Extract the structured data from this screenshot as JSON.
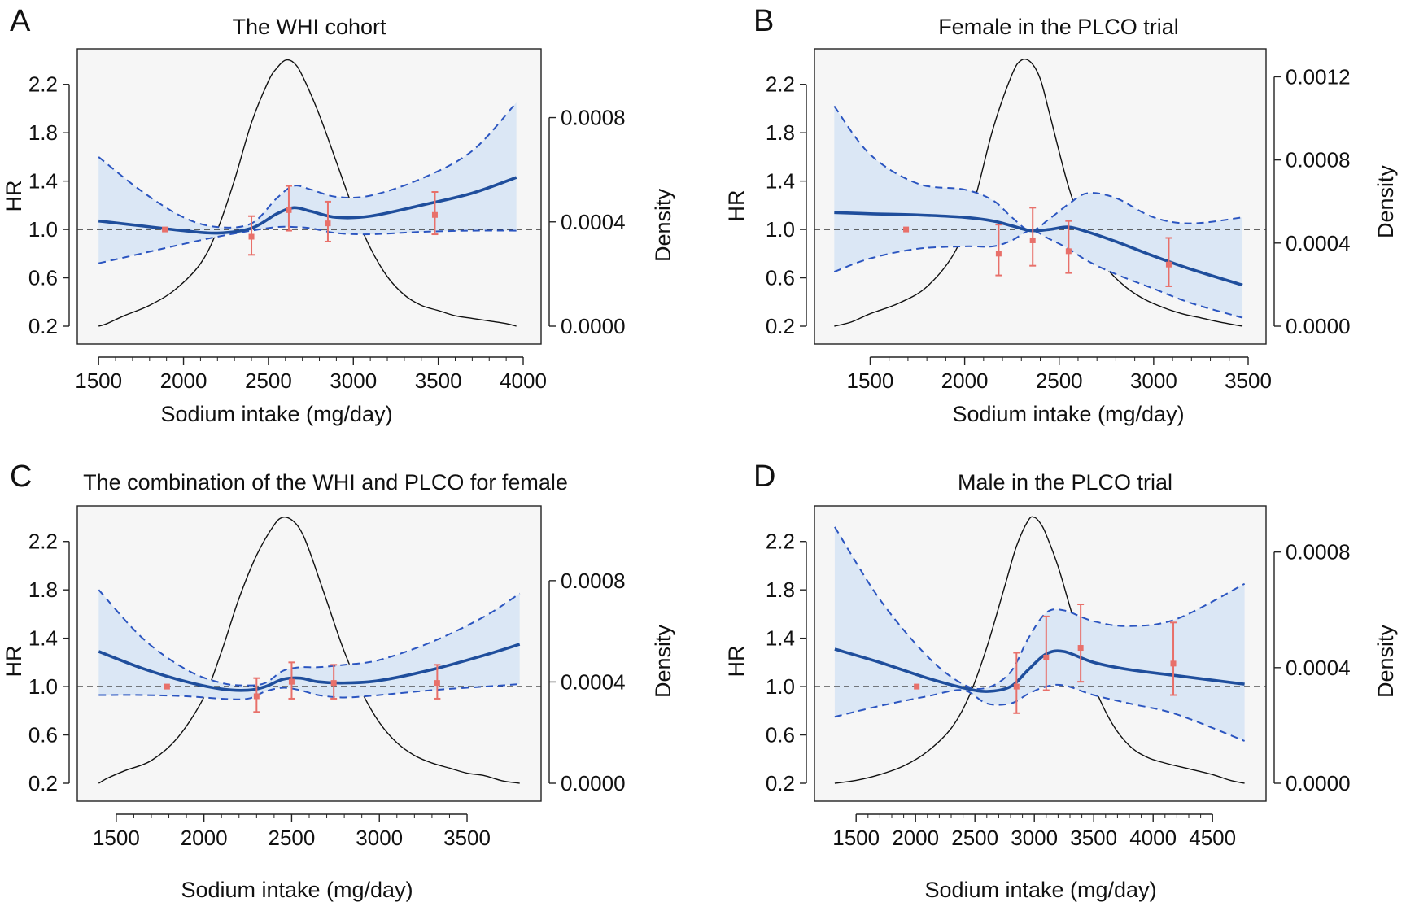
{
  "figure": {
    "left_axis_label": "HR",
    "right_axis_label": "Density",
    "x_axis_label": "Sodium intake (mg/day)"
  },
  "colors": {
    "plot_background": "#f6f6f6",
    "confidence_band": "#dbe7f5",
    "hr_curve": "#1f4e9c",
    "ci_dashed": "#2b55c0",
    "reference_line": "#333333",
    "density_curve": "#111111",
    "category_points": "#e8706a"
  },
  "chart_data": [
    {
      "type": "line",
      "panel": "A",
      "title": "The WHI cohort",
      "xlabel": "Sodium intake (mg/day)",
      "ylabel": "HR",
      "y2label": "Density",
      "xlim": [
        1480,
        4000
      ],
      "ylim": [
        0.2,
        2.4
      ],
      "y2lim": [
        0.0,
        0.00102
      ],
      "x_ticks": [
        1500,
        2000,
        2500,
        3000,
        3500,
        4000
      ],
      "y_ticks": [
        0.2,
        0.6,
        1.0,
        1.4,
        1.8,
        2.2
      ],
      "y2_ticks": [
        0.0,
        0.0004,
        0.0008
      ],
      "y2_tick_labels": [
        "0.0000",
        "0.0004",
        "0.0008"
      ],
      "reference_hr": 1.0,
      "hr_curve": {
        "x": [
          1500,
          1750,
          2000,
          2200,
          2400,
          2550,
          2650,
          2750,
          2900,
          3100,
          3400,
          3700,
          3960
        ],
        "y": [
          1.07,
          1.03,
          0.99,
          0.97,
          1.01,
          1.13,
          1.18,
          1.15,
          1.1,
          1.11,
          1.2,
          1.3,
          1.43
        ]
      },
      "ci_upper": {
        "x": [
          1500,
          1750,
          2000,
          2200,
          2400,
          2550,
          2650,
          2750,
          2900,
          3100,
          3400,
          3700,
          3960
        ],
        "y": [
          1.6,
          1.32,
          1.1,
          1.02,
          1.05,
          1.26,
          1.36,
          1.33,
          1.27,
          1.28,
          1.42,
          1.65,
          2.05
        ]
      },
      "ci_lower": {
        "x": [
          1500,
          1750,
          2000,
          2200,
          2400,
          2550,
          2650,
          2750,
          2900,
          3100,
          3400,
          3700,
          3960
        ],
        "y": [
          0.72,
          0.8,
          0.88,
          0.94,
          0.99,
          1.02,
          1.02,
          1.01,
          0.97,
          0.96,
          0.98,
          0.99,
          0.99
        ]
      },
      "density": {
        "x": [
          1500,
          1550,
          1650,
          1800,
          1950,
          2100,
          2200,
          2300,
          2400,
          2500,
          2550,
          2600,
          2650,
          2700,
          2800,
          2900,
          3000,
          3100,
          3200,
          3300,
          3400,
          3500,
          3600,
          3700,
          3800,
          3900,
          3960
        ],
        "y": [
          0.0,
          1e-05,
          4e-05,
          8e-05,
          0.00014,
          0.00024,
          0.00037,
          0.00056,
          0.00078,
          0.00094,
          0.00099,
          0.00102,
          0.00101,
          0.00096,
          0.00081,
          0.00063,
          0.00045,
          0.0003,
          0.00019,
          0.00012,
          8e-05,
          6e-05,
          4e-05,
          3e-05,
          2e-05,
          1e-05,
          0.0
        ]
      },
      "points": [
        {
          "x": 1890,
          "hr": 1.0,
          "lower": 1.0,
          "upper": 1.0
        },
        {
          "x": 2400,
          "hr": 0.94,
          "lower": 0.79,
          "upper": 1.11
        },
        {
          "x": 2620,
          "hr": 1.16,
          "lower": 0.99,
          "upper": 1.36
        },
        {
          "x": 2850,
          "hr": 1.05,
          "lower": 0.9,
          "upper": 1.23
        },
        {
          "x": 3480,
          "hr": 1.12,
          "lower": 0.96,
          "upper": 1.31
        }
      ]
    },
    {
      "type": "line",
      "panel": "B",
      "title": "Female in the PLCO trial",
      "xlabel": "Sodium intake (mg/day)",
      "ylabel": "HR",
      "y2label": "Density",
      "xlim": [
        1300,
        3500
      ],
      "ylim": [
        0.2,
        2.4
      ],
      "y2lim": [
        0.0,
        0.00128
      ],
      "x_ticks": [
        1500,
        2000,
        2500,
        3000,
        3500
      ],
      "y_ticks": [
        0.2,
        0.6,
        1.0,
        1.4,
        1.8,
        2.2
      ],
      "y2_ticks": [
        0.0,
        0.0004,
        0.0008,
        0.0012
      ],
      "y2_tick_labels": [
        "0.0000",
        "0.0004",
        "0.0008",
        "0.0012"
      ],
      "reference_hr": 1.0,
      "hr_curve": {
        "x": [
          1310,
          1500,
          1750,
          2000,
          2150,
          2250,
          2350,
          2450,
          2550,
          2650,
          2800,
          3000,
          3200,
          3470
        ],
        "y": [
          1.14,
          1.13,
          1.12,
          1.1,
          1.07,
          1.03,
          0.99,
          1.0,
          1.02,
          0.98,
          0.9,
          0.78,
          0.67,
          0.54
        ]
      },
      "ci_upper": {
        "x": [
          1310,
          1500,
          1750,
          2000,
          2150,
          2250,
          2350,
          2450,
          2550,
          2650,
          2800,
          3000,
          3200,
          3470
        ],
        "y": [
          2.02,
          1.62,
          1.38,
          1.33,
          1.24,
          1.1,
          0.99,
          1.09,
          1.21,
          1.3,
          1.26,
          1.1,
          1.05,
          1.1
        ]
      },
      "ci_lower": {
        "x": [
          1310,
          1500,
          1750,
          2000,
          2150,
          2250,
          2350,
          2450,
          2550,
          2650,
          2800,
          3000,
          3200,
          3470
        ],
        "y": [
          0.65,
          0.76,
          0.84,
          0.86,
          0.86,
          0.91,
          0.99,
          0.92,
          0.84,
          0.74,
          0.63,
          0.51,
          0.39,
          0.27
        ]
      },
      "density": {
        "x": [
          1310,
          1400,
          1500,
          1650,
          1800,
          1950,
          2050,
          2150,
          2250,
          2300,
          2350,
          2400,
          2450,
          2550,
          2650,
          2750,
          2850,
          2950,
          3050,
          3150,
          3250,
          3350,
          3470
        ],
        "y": [
          0.0,
          2e-05,
          6e-05,
          0.00011,
          0.00019,
          0.00036,
          0.0006,
          0.00095,
          0.00121,
          0.00128,
          0.00127,
          0.00119,
          0.00102,
          0.00067,
          0.00042,
          0.00028,
          0.00019,
          0.00013,
          9e-05,
          6e-05,
          4e-05,
          2e-05,
          0.0
        ]
      },
      "points": [
        {
          "x": 1690,
          "hr": 1.0,
          "lower": 1.0,
          "upper": 1.0
        },
        {
          "x": 2180,
          "hr": 0.8,
          "lower": 0.62,
          "upper": 1.04
        },
        {
          "x": 2360,
          "hr": 0.91,
          "lower": 0.7,
          "upper": 1.18
        },
        {
          "x": 2550,
          "hr": 0.82,
          "lower": 0.64,
          "upper": 1.07
        },
        {
          "x": 3080,
          "hr": 0.71,
          "lower": 0.53,
          "upper": 0.93
        }
      ]
    },
    {
      "type": "line",
      "panel": "C",
      "title": "The combination of the WHI and PLCO for female",
      "xlabel": "Sodium intake (mg/day)",
      "ylabel": "HR",
      "y2label": "Density",
      "xlim": [
        1380,
        3820
      ],
      "ylim": [
        0.2,
        2.4
      ],
      "y2lim": [
        0.0,
        0.00105
      ],
      "x_ticks": [
        1500,
        2000,
        2500,
        3000,
        3500
      ],
      "y_ticks": [
        0.2,
        0.6,
        1.0,
        1.4,
        1.8,
        2.2
      ],
      "y2_ticks": [
        0.0,
        0.0004,
        0.0008
      ],
      "y2_tick_labels": [
        "0.0000",
        "0.0004",
        "0.0008"
      ],
      "reference_hr": 1.0,
      "hr_curve": {
        "x": [
          1400,
          1650,
          1900,
          2100,
          2250,
          2350,
          2450,
          2550,
          2650,
          2800,
          3000,
          3300,
          3600,
          3800
        ],
        "y": [
          1.29,
          1.15,
          1.04,
          0.98,
          0.97,
          1.0,
          1.06,
          1.07,
          1.04,
          1.03,
          1.05,
          1.14,
          1.26,
          1.35
        ]
      },
      "ci_upper": {
        "x": [
          1400,
          1650,
          1900,
          2100,
          2250,
          2350,
          2450,
          2550,
          2650,
          2800,
          3000,
          3300,
          3600,
          3800
        ],
        "y": [
          1.8,
          1.4,
          1.14,
          1.03,
          1.01,
          1.03,
          1.13,
          1.16,
          1.16,
          1.18,
          1.22,
          1.37,
          1.58,
          1.77
        ]
      },
      "ci_lower": {
        "x": [
          1400,
          1650,
          1900,
          2100,
          2250,
          2350,
          2450,
          2550,
          2650,
          2800,
          3000,
          3300,
          3600,
          3800
        ],
        "y": [
          0.93,
          0.93,
          0.92,
          0.9,
          0.9,
          0.96,
          0.99,
          0.97,
          0.93,
          0.91,
          0.93,
          0.97,
          1.0,
          1.02
        ]
      },
      "density": {
        "x": [
          1400,
          1450,
          1550,
          1700,
          1850,
          2000,
          2100,
          2200,
          2300,
          2400,
          2450,
          2500,
          2550,
          2600,
          2700,
          2800,
          2900,
          3000,
          3100,
          3200,
          3300,
          3400,
          3500,
          3600,
          3700,
          3800
        ],
        "y": [
          0.0,
          2e-05,
          5e-05,
          9e-05,
          0.00018,
          0.00034,
          0.00052,
          0.00073,
          0.0009,
          0.00102,
          0.00105,
          0.00104,
          0.001,
          0.00092,
          0.00072,
          0.00052,
          0.00036,
          0.00024,
          0.00016,
          0.00011,
          8e-05,
          6e-05,
          4e-05,
          3e-05,
          1e-05,
          0.0
        ]
      },
      "points": [
        {
          "x": 1790,
          "hr": 1.0,
          "lower": 1.0,
          "upper": 1.0
        },
        {
          "x": 2300,
          "hr": 0.92,
          "lower": 0.79,
          "upper": 1.07
        },
        {
          "x": 2500,
          "hr": 1.04,
          "lower": 0.9,
          "upper": 1.2
        },
        {
          "x": 2740,
          "hr": 1.03,
          "lower": 0.9,
          "upper": 1.18
        },
        {
          "x": 3330,
          "hr": 1.03,
          "lower": 0.9,
          "upper": 1.18
        }
      ]
    },
    {
      "type": "line",
      "panel": "D",
      "title": "Male in the PLCO trial",
      "xlabel": "Sodium intake (mg/day)",
      "ylabel": "HR",
      "y2label": "Density",
      "xlim": [
        1300,
        4800
      ],
      "ylim": [
        0.2,
        2.4
      ],
      "y2lim": [
        0.0,
        0.00092
      ],
      "x_ticks": [
        1500,
        2000,
        2500,
        3000,
        3500,
        4000,
        4500
      ],
      "y_ticks": [
        0.2,
        0.6,
        1.0,
        1.4,
        1.8,
        2.2
      ],
      "y2_ticks": [
        0.0,
        0.0004,
        0.0008
      ],
      "y2_tick_labels": [
        "0.0000",
        "0.0004",
        "0.0008"
      ],
      "reference_hr": 1.0,
      "hr_curve": {
        "x": [
          1320,
          1700,
          2100,
          2400,
          2600,
          2800,
          2950,
          3100,
          3250,
          3500,
          3800,
          4200,
          4770
        ],
        "y": [
          1.31,
          1.2,
          1.07,
          0.99,
          0.96,
          1.0,
          1.14,
          1.27,
          1.29,
          1.2,
          1.14,
          1.09,
          1.02
        ]
      },
      "ci_upper": {
        "x": [
          1320,
          1700,
          2100,
          2400,
          2600,
          2800,
          2950,
          3100,
          3250,
          3500,
          3800,
          4200,
          4770
        ],
        "y": [
          2.32,
          1.72,
          1.25,
          1.02,
          0.99,
          1.12,
          1.4,
          1.61,
          1.63,
          1.54,
          1.5,
          1.56,
          1.85
        ]
      },
      "ci_lower": {
        "x": [
          1320,
          1700,
          2100,
          2400,
          2600,
          2800,
          2950,
          3100,
          3250,
          3500,
          3800,
          4200,
          4770
        ],
        "y": [
          0.75,
          0.84,
          0.92,
          0.97,
          0.86,
          0.86,
          0.94,
          1.0,
          1.01,
          0.93,
          0.86,
          0.77,
          0.55
        ]
      },
      "density": {
        "x": [
          1320,
          1500,
          1700,
          1900,
          2100,
          2300,
          2450,
          2600,
          2750,
          2850,
          2950,
          3000,
          3050,
          3100,
          3200,
          3300,
          3400,
          3500,
          3650,
          3800,
          3950,
          4100,
          4300,
          4500,
          4650,
          4770
        ],
        "y": [
          0.0,
          1e-05,
          3e-05,
          6e-05,
          0.00011,
          0.00019,
          0.0003,
          0.00047,
          0.00068,
          0.00082,
          0.00091,
          0.00092,
          0.0009,
          0.00086,
          0.00075,
          0.00061,
          0.00047,
          0.00034,
          0.00021,
          0.00013,
          9e-05,
          7e-05,
          5e-05,
          3e-05,
          1e-05,
          0.0
        ]
      },
      "points": [
        {
          "x": 2010,
          "hr": 1.0,
          "lower": 1.0,
          "upper": 1.0
        },
        {
          "x": 2850,
          "hr": 1.0,
          "lower": 0.78,
          "upper": 1.28
        },
        {
          "x": 3100,
          "hr": 1.24,
          "lower": 0.97,
          "upper": 1.58
        },
        {
          "x": 3390,
          "hr": 1.32,
          "lower": 1.04,
          "upper": 1.68
        },
        {
          "x": 4170,
          "hr": 1.19,
          "lower": 0.93,
          "upper": 1.53
        }
      ]
    }
  ]
}
